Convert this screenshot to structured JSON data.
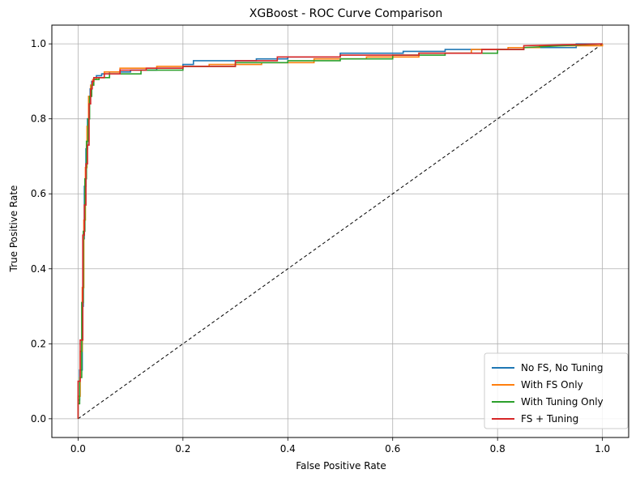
{
  "chart_data": {
    "type": "line",
    "title": "XGBoost - ROC Curve Comparison",
    "xlabel": "False Positive Rate",
    "ylabel": "True Positive Rate",
    "xlim": [
      -0.05,
      1.05
    ],
    "ylim": [
      -0.05,
      1.05
    ],
    "xticks": [
      0.0,
      0.2,
      0.4,
      0.6,
      0.8,
      1.0
    ],
    "yticks": [
      0.0,
      0.2,
      0.4,
      0.6,
      0.8,
      1.0
    ],
    "xtick_labels": [
      "0.0",
      "0.2",
      "0.4",
      "0.6",
      "0.8",
      "1.0"
    ],
    "ytick_labels": [
      "0.0",
      "0.2",
      "0.4",
      "0.6",
      "0.8",
      "1.0"
    ],
    "grid": true,
    "legend_position": "lower-right",
    "diagonal": {
      "x": [
        0,
        1
      ],
      "y": [
        0,
        1
      ],
      "style": "dashed",
      "color": "#000000"
    },
    "series": [
      {
        "name": "No FS, No Tuning",
        "color": "#1f77b4",
        "x": [
          0.0,
          0.0,
          0.003,
          0.003,
          0.008,
          0.008,
          0.01,
          0.01,
          0.012,
          0.012,
          0.015,
          0.015,
          0.018,
          0.018,
          0.02,
          0.02,
          0.023,
          0.023,
          0.026,
          0.026,
          0.03,
          0.03,
          0.035,
          0.035,
          0.045,
          0.045,
          0.06,
          0.06,
          0.1,
          0.1,
          0.15,
          0.15,
          0.2,
          0.2,
          0.22,
          0.22,
          0.34,
          0.34,
          0.4,
          0.4,
          0.5,
          0.5,
          0.62,
          0.62,
          0.7,
          0.7,
          0.85,
          0.85,
          0.95,
          0.95,
          1.0
        ],
        "y": [
          0.0,
          0.05,
          0.05,
          0.13,
          0.13,
          0.3,
          0.3,
          0.48,
          0.48,
          0.62,
          0.62,
          0.72,
          0.72,
          0.8,
          0.8,
          0.85,
          0.85,
          0.88,
          0.88,
          0.9,
          0.9,
          0.91,
          0.91,
          0.915,
          0.915,
          0.92,
          0.92,
          0.925,
          0.925,
          0.93,
          0.93,
          0.935,
          0.935,
          0.945,
          0.945,
          0.955,
          0.955,
          0.96,
          0.96,
          0.965,
          0.965,
          0.975,
          0.975,
          0.98,
          0.98,
          0.985,
          0.985,
          0.99,
          0.99,
          1.0,
          1.0
        ]
      },
      {
        "name": "With FS Only",
        "color": "#ff7f0e",
        "x": [
          0.0,
          0.0,
          0.004,
          0.004,
          0.008,
          0.008,
          0.011,
          0.011,
          0.014,
          0.014,
          0.017,
          0.017,
          0.02,
          0.02,
          0.024,
          0.024,
          0.028,
          0.028,
          0.035,
          0.035,
          0.05,
          0.05,
          0.08,
          0.08,
          0.15,
          0.15,
          0.25,
          0.25,
          0.35,
          0.35,
          0.45,
          0.45,
          0.55,
          0.55,
          0.65,
          0.65,
          0.75,
          0.75,
          0.82,
          0.82,
          0.88,
          0.88,
          1.0
        ],
        "y": [
          0.0,
          0.06,
          0.06,
          0.18,
          0.18,
          0.35,
          0.35,
          0.53,
          0.53,
          0.67,
          0.67,
          0.78,
          0.78,
          0.86,
          0.86,
          0.89,
          0.89,
          0.905,
          0.905,
          0.91,
          0.91,
          0.925,
          0.925,
          0.935,
          0.935,
          0.94,
          0.94,
          0.945,
          0.945,
          0.95,
          0.95,
          0.96,
          0.96,
          0.965,
          0.965,
          0.975,
          0.975,
          0.985,
          0.985,
          0.99,
          0.99,
          0.995,
          0.995
        ]
      },
      {
        "name": "With Tuning Only",
        "color": "#2ca02c",
        "x": [
          0.0,
          0.0,
          0.003,
          0.003,
          0.007,
          0.007,
          0.01,
          0.01,
          0.013,
          0.013,
          0.016,
          0.016,
          0.019,
          0.019,
          0.022,
          0.022,
          0.026,
          0.026,
          0.03,
          0.03,
          0.04,
          0.04,
          0.06,
          0.06,
          0.12,
          0.12,
          0.2,
          0.2,
          0.3,
          0.3,
          0.4,
          0.4,
          0.5,
          0.5,
          0.6,
          0.6,
          0.7,
          0.7,
          0.8,
          0.8,
          0.85,
          0.85,
          1.0
        ],
        "y": [
          0.0,
          0.04,
          0.04,
          0.11,
          0.11,
          0.31,
          0.31,
          0.5,
          0.5,
          0.64,
          0.64,
          0.74,
          0.74,
          0.8,
          0.8,
          0.86,
          0.86,
          0.89,
          0.89,
          0.905,
          0.905,
          0.91,
          0.91,
          0.92,
          0.92,
          0.93,
          0.93,
          0.94,
          0.94,
          0.95,
          0.95,
          0.955,
          0.955,
          0.96,
          0.96,
          0.97,
          0.97,
          0.975,
          0.975,
          0.985,
          0.985,
          0.99,
          1.0
        ]
      },
      {
        "name": "FS + Tuning",
        "color": "#d62728",
        "x": [
          0.0,
          0.0,
          0.004,
          0.004,
          0.009,
          0.009,
          0.012,
          0.012,
          0.015,
          0.015,
          0.018,
          0.018,
          0.021,
          0.021,
          0.024,
          0.024,
          0.027,
          0.027,
          0.03,
          0.03,
          0.05,
          0.05,
          0.08,
          0.08,
          0.13,
          0.13,
          0.2,
          0.2,
          0.3,
          0.3,
          0.38,
          0.38,
          0.5,
          0.5,
          0.65,
          0.65,
          0.77,
          0.77,
          0.85,
          0.85,
          1.0
        ],
        "y": [
          0.0,
          0.1,
          0.1,
          0.21,
          0.21,
          0.49,
          0.49,
          0.57,
          0.57,
          0.68,
          0.68,
          0.73,
          0.73,
          0.84,
          0.84,
          0.88,
          0.88,
          0.9,
          0.9,
          0.91,
          0.91,
          0.92,
          0.92,
          0.93,
          0.93,
          0.935,
          0.935,
          0.94,
          0.94,
          0.955,
          0.955,
          0.965,
          0.965,
          0.97,
          0.97,
          0.975,
          0.975,
          0.985,
          0.985,
          0.995,
          1.0
        ]
      }
    ]
  }
}
